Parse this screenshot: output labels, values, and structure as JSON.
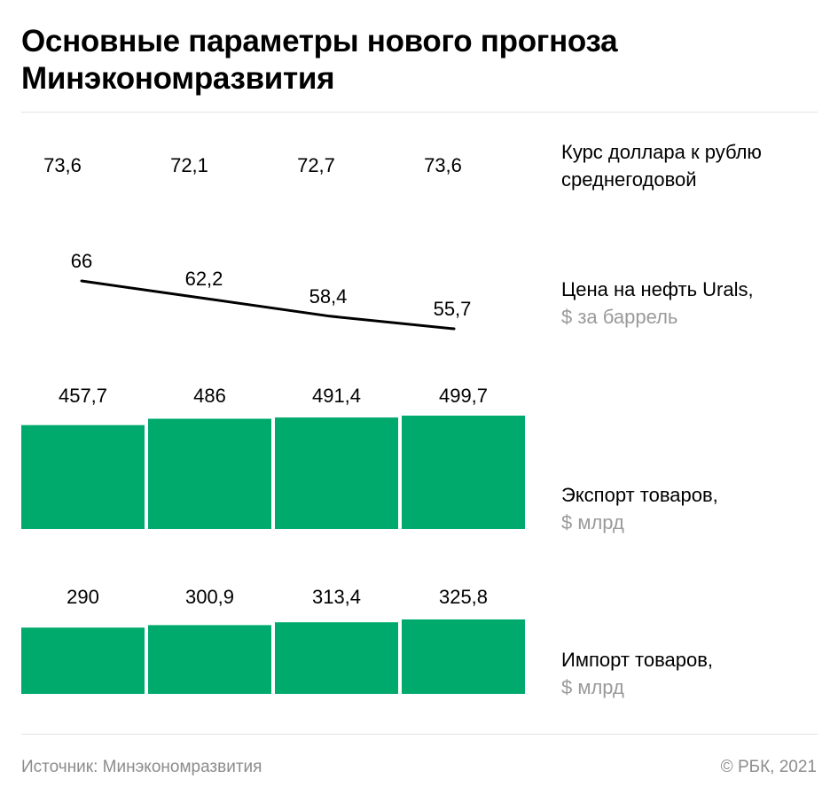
{
  "header": {
    "title": "Основные параметры нового прогноза Минэкономразвития"
  },
  "colors": {
    "bar": "#00aa6c",
    "line": "#000000",
    "muted": "#9a9a9a"
  },
  "chart_data": [
    {
      "type": "table",
      "label": "Курс доллара к рублю среднегодовой",
      "unit": "",
      "values": [
        73.6,
        72.1,
        72.7,
        73.6
      ],
      "value_labels": [
        "73,6",
        "72,1",
        "72,7",
        "73,6"
      ]
    },
    {
      "type": "line",
      "label": "Цена на нефть Urals,",
      "unit": "$ за баррель",
      "values": [
        66,
        62.2,
        58.4,
        55.7
      ],
      "value_labels": [
        "66",
        "62,2",
        "58,4",
        "55,7"
      ]
    },
    {
      "type": "bar",
      "label": "Экспорт товаров,",
      "unit": "$ млрд",
      "values": [
        457.7,
        486,
        491.4,
        499.7
      ],
      "value_labels": [
        "457,7",
        "486",
        "491,4",
        "499,7"
      ]
    },
    {
      "type": "bar",
      "label": "Импорт товаров,",
      "unit": "$ млрд",
      "values": [
        290,
        300.9,
        313.4,
        325.8
      ],
      "value_labels": [
        "290",
        "300,9",
        "313,4",
        "325,8"
      ]
    }
  ],
  "footer": {
    "source": "Источник: Минэкономразвития",
    "copyright": "© РБК, 2021"
  }
}
